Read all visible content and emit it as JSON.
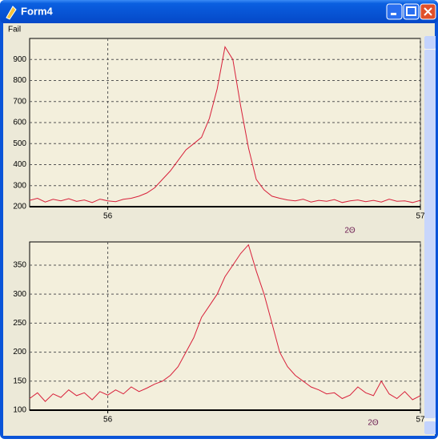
{
  "window_title": "Form4",
  "menu": [
    "Fail"
  ],
  "chart_data": [
    {
      "type": "line",
      "xlabel": "2Θ",
      "color": "#d8203a",
      "grid": true,
      "xlim": [
        55.75,
        57
      ],
      "xticks": [
        56,
        57
      ],
      "ylim": [
        200,
        1000
      ],
      "yticks": [
        200,
        300,
        400,
        500,
        600,
        700,
        800,
        900
      ],
      "x": [
        55.75,
        55.775,
        55.8,
        55.825,
        55.85,
        55.875,
        55.9,
        55.925,
        55.95,
        55.975,
        56,
        56.025,
        56.05,
        56.075,
        56.1,
        56.125,
        56.15,
        56.175,
        56.2,
        56.225,
        56.25,
        56.275,
        56.3,
        56.325,
        56.35,
        56.375,
        56.4,
        56.425,
        56.45,
        56.475,
        56.5,
        56.525,
        56.55,
        56.575,
        56.6,
        56.625,
        56.65,
        56.675,
        56.7,
        56.725,
        56.75,
        56.775,
        56.8,
        56.825,
        56.85,
        56.875,
        56.9,
        56.925,
        56.95,
        56.975,
        57
      ],
      "values": [
        230,
        240,
        222,
        235,
        228,
        238,
        225,
        232,
        220,
        236,
        228,
        224,
        235,
        240,
        250,
        265,
        290,
        330,
        370,
        420,
        470,
        500,
        530,
        620,
        760,
        960,
        900,
        680,
        480,
        330,
        280,
        250,
        240,
        232,
        228,
        236,
        222,
        230,
        226,
        234,
        220,
        228,
        232,
        224,
        230,
        222,
        236,
        226,
        228,
        220,
        230
      ]
    },
    {
      "type": "line",
      "xlabel": "2Θ",
      "color": "#d8203a",
      "grid": true,
      "xlim": [
        55.75,
        57
      ],
      "xticks": [
        56,
        57
      ],
      "ylim": [
        100,
        390
      ],
      "yticks": [
        100,
        150,
        200,
        250,
        300,
        350
      ],
      "x": [
        55.75,
        55.775,
        55.8,
        55.825,
        55.85,
        55.875,
        55.9,
        55.925,
        55.95,
        55.975,
        56,
        56.025,
        56.05,
        56.075,
        56.1,
        56.125,
        56.15,
        56.175,
        56.2,
        56.225,
        56.25,
        56.275,
        56.3,
        56.325,
        56.35,
        56.375,
        56.4,
        56.425,
        56.45,
        56.475,
        56.5,
        56.525,
        56.55,
        56.575,
        56.6,
        56.625,
        56.65,
        56.675,
        56.7,
        56.725,
        56.75,
        56.775,
        56.8,
        56.825,
        56.85,
        56.875,
        56.9,
        56.925,
        56.95,
        56.975,
        57
      ],
      "values": [
        120,
        130,
        115,
        128,
        122,
        135,
        125,
        130,
        118,
        132,
        126,
        135,
        128,
        140,
        132,
        138,
        145,
        150,
        160,
        175,
        200,
        225,
        260,
        280,
        300,
        330,
        350,
        370,
        385,
        340,
        300,
        250,
        200,
        175,
        160,
        150,
        140,
        135,
        128,
        130,
        120,
        126,
        140,
        130,
        125,
        150,
        128,
        120,
        132,
        118,
        125
      ]
    }
  ]
}
